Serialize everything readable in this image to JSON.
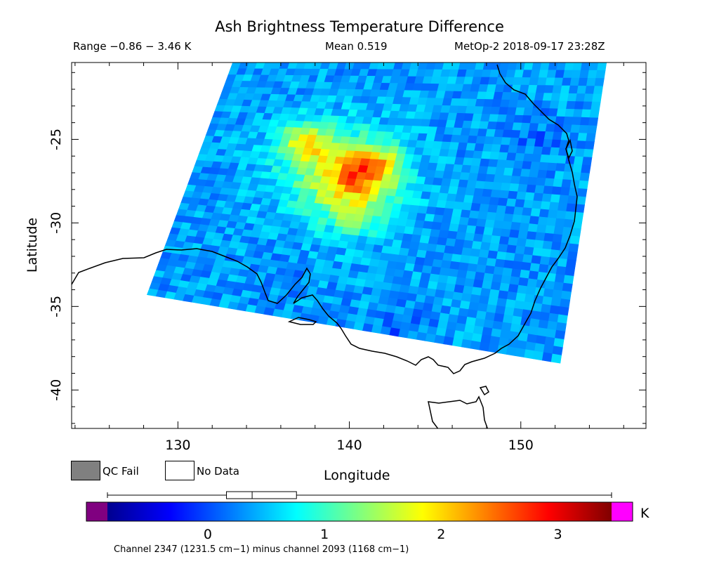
{
  "header": {
    "title": "Ash Brightness Temperature Difference",
    "range": "Range −0.86 − 3.46 K",
    "mean": "Mean 0.519",
    "satellite_time": "MetOp-2 2018-09-17 23:28Z"
  },
  "legend": {
    "qc_fail_label": "QC Fail",
    "no_data_label": "No Data",
    "qc_fail_color": "#808080",
    "no_data_color": "#ffffff"
  },
  "colorbar": {
    "unit": "K",
    "range_min": -0.86,
    "range_max": 3.46,
    "ticks": [
      "0",
      "1",
      "2",
      "3"
    ],
    "under_color": "#800080",
    "over_color": "#ff00ff",
    "note": "Channel 2347 (1231.5 cm−1) minus channel 2093 (1168 cm−1)",
    "box_stats": {
      "whisker_low": -0.86,
      "q1": 0.16,
      "median": 0.38,
      "q3": 0.76,
      "whisker_high": 3.46
    }
  },
  "chart_data": {
    "type": "heatmap",
    "title": "Ash Brightness Temperature Difference",
    "xlabel": "Longitude",
    "ylabel": "Latitude",
    "xlim": [
      123.8,
      157.3
    ],
    "ylim": [
      -42.3,
      -20.4
    ],
    "xticks": [
      130,
      140,
      150
    ],
    "yticks": [
      -25,
      -30,
      -35,
      -40
    ],
    "grid": false,
    "colormap": "jet",
    "value_unit": "K",
    "value_range": [
      -0.86,
      3.46
    ],
    "mean": 0.519,
    "swath_corners": [
      [
        133.2,
        -20.4
      ],
      [
        155.0,
        -20.4
      ],
      [
        152.3,
        -38.4
      ],
      [
        128.2,
        -34.3
      ]
    ],
    "hotspots": [
      {
        "lon": 137.5,
        "lat": -25.2,
        "value": 2.3
      },
      {
        "lon": 141.4,
        "lat": -26.7,
        "value": 2.7
      },
      {
        "lon": 139.8,
        "lat": -27.5,
        "value": 1.6
      },
      {
        "lon": 140.5,
        "lat": -29.5,
        "value": 1.4
      }
    ],
    "cold_spots": [
      {
        "lon": 143.0,
        "lat": -36.2,
        "value": -0.1
      },
      {
        "lon": 151.0,
        "lat": -25.0,
        "value": 0.0
      },
      {
        "lon": 136.0,
        "lat": -33.0,
        "value": 0.1
      }
    ],
    "background_value": 0.35,
    "coastline": "Australia (south-east)"
  }
}
